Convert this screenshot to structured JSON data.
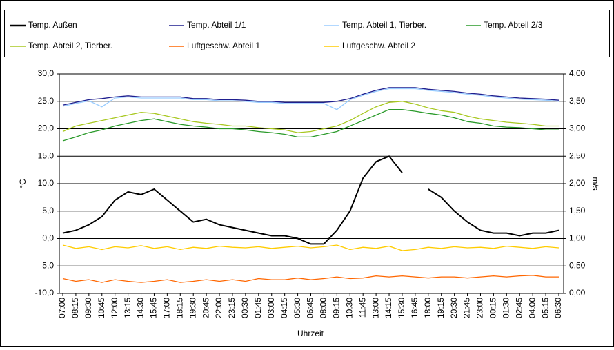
{
  "chart_data": {
    "type": "line",
    "x_label": "Uhrzeit",
    "y_label": "°C",
    "y2_label": "m/s",
    "categories": [
      "07:00",
      "08:15",
      "09:30",
      "10:45",
      "12:00",
      "13:15",
      "14:30",
      "15:45",
      "17:00",
      "18:15",
      "19:30",
      "20:45",
      "22:00",
      "23:15",
      "00:30",
      "01:45",
      "03:00",
      "04:15",
      "05:30",
      "06:45",
      "08:00",
      "09:15",
      "10:30",
      "11:45",
      "13:00",
      "14:15",
      "15:30",
      "16:45",
      "18:00",
      "19:15",
      "20:30",
      "21:45",
      "23:00",
      "00:15",
      "01:30",
      "02:45",
      "04:00",
      "05:15",
      "06:30"
    ],
    "series": [
      {
        "name": "Temp. Außen",
        "color": "#000000",
        "values": [
          1.0,
          1.5,
          2.5,
          4,
          7,
          8.5,
          8,
          9,
          7,
          5,
          3,
          3.5,
          2.5,
          2,
          1.5,
          1,
          0.5,
          0.5,
          0,
          -1,
          -1,
          1.5,
          5,
          11,
          14,
          15,
          12,
          null,
          9,
          7.5,
          5,
          3,
          1.5,
          1,
          1,
          0.5,
          1,
          1,
          1.5
        ]
      },
      {
        "name": "Temp. Abteil 1/1",
        "color": "#1f1f8f",
        "values": [
          24.3,
          24.8,
          25.3,
          25.5,
          25.8,
          26,
          25.8,
          25.8,
          25.8,
          25.8,
          25.5,
          25.5,
          25.3,
          25.3,
          25.2,
          25,
          25,
          24.8,
          24.8,
          24.8,
          24.8,
          25,
          25.5,
          26.3,
          27,
          27.5,
          27.5,
          27.5,
          27.2,
          27,
          26.8,
          26.5,
          26.3,
          26,
          25.8,
          25.6,
          25.5,
          25.4,
          25.2
        ]
      },
      {
        "name": "Temp. Abteil 1, Tierber.",
        "color": "#99ccff",
        "values": [
          24.1,
          24.6,
          25.1,
          24.0,
          25.6,
          25.8,
          25.6,
          25.6,
          25.6,
          25.6,
          25.3,
          25.3,
          25.1,
          25.1,
          25,
          24.8,
          24.8,
          24.6,
          24.6,
          24.6,
          24.6,
          23.5,
          25.3,
          26.1,
          26.8,
          27.3,
          27.3,
          27.3,
          27,
          26.8,
          26.6,
          26.3,
          26.1,
          25.8,
          25.6,
          25.4,
          25.3,
          25.2,
          25
        ]
      },
      {
        "name": "Temp. Abteil 2/3",
        "color": "#2a9a2a",
        "values": [
          17.8,
          18.5,
          19.3,
          19.8,
          20.5,
          21,
          21.5,
          21.8,
          21.3,
          20.8,
          20.5,
          20.3,
          20,
          20,
          19.8,
          19.5,
          19.3,
          19,
          18.5,
          18.5,
          19,
          19.5,
          20.5,
          21.5,
          22.5,
          23.5,
          23.5,
          23.2,
          22.8,
          22.5,
          22,
          21.3,
          21,
          20.5,
          20.3,
          20.2,
          20,
          19.8,
          19.8
        ]
      },
      {
        "name": "Temp. Abteil 2, Tierber.",
        "color": "#a8c820",
        "values": [
          19.5,
          20.5,
          21,
          21.5,
          22,
          22.5,
          23,
          22.8,
          22.3,
          21.8,
          21.3,
          21,
          20.8,
          20.5,
          20.5,
          20.2,
          20,
          19.8,
          19.3,
          19.5,
          20,
          20.5,
          21.5,
          22.8,
          24,
          24.8,
          25,
          24.5,
          23.8,
          23.3,
          23,
          22.3,
          21.8,
          21.5,
          21.2,
          21,
          20.8,
          20.5,
          20.5
        ]
      },
      {
        "name": "Luftgeschw. Abteil 1",
        "color": "#ff6600",
        "axis": "y2",
        "values": [
          0.27,
          0.22,
          0.25,
          0.2,
          0.25,
          0.22,
          0.2,
          0.22,
          0.25,
          0.2,
          0.22,
          0.25,
          0.22,
          0.25,
          0.22,
          0.27,
          0.25,
          0.25,
          0.28,
          0.25,
          0.27,
          0.3,
          0.27,
          0.28,
          0.32,
          0.3,
          0.32,
          0.3,
          0.28,
          0.3,
          0.3,
          0.28,
          0.3,
          0.32,
          0.3,
          0.32,
          0.33,
          0.3,
          0.3
        ]
      },
      {
        "name": "Luftgeschw. Abteil 2",
        "color": "#ffcc00",
        "axis": "y2",
        "values": [
          0.88,
          0.82,
          0.85,
          0.8,
          0.85,
          0.83,
          0.87,
          0.82,
          0.85,
          0.8,
          0.84,
          0.82,
          0.86,
          0.84,
          0.83,
          0.85,
          0.82,
          0.84,
          0.86,
          0.83,
          0.85,
          0.88,
          0.8,
          0.84,
          0.82,
          0.86,
          0.78,
          0.8,
          0.84,
          0.82,
          0.85,
          0.83,
          0.84,
          0.82,
          0.86,
          0.84,
          0.82,
          0.85,
          0.83
        ]
      }
    ],
    "ylim": [
      -10,
      30
    ],
    "yticks": [
      {
        "value": -10,
        "label": "-10,0"
      },
      {
        "value": -5,
        "label": "-5,0"
      },
      {
        "value": 0,
        "label": "0,0"
      },
      {
        "value": 5,
        "label": "5,0"
      },
      {
        "value": 10,
        "label": "10,0"
      },
      {
        "value": 15,
        "label": "15,0"
      },
      {
        "value": 20,
        "label": "20,0"
      },
      {
        "value": 25,
        "label": "25,0"
      },
      {
        "value": 30,
        "label": "30,0"
      }
    ],
    "y2lim": [
      0,
      4
    ],
    "y2ticks": [
      {
        "value": 0,
        "label": "0,00"
      },
      {
        "value": 0.5,
        "label": "0,50"
      },
      {
        "value": 1,
        "label": "1,00"
      },
      {
        "value": 1.5,
        "label": "1,50"
      },
      {
        "value": 2,
        "label": "2,00"
      },
      {
        "value": 2.5,
        "label": "2,50"
      },
      {
        "value": 3,
        "label": "3,00"
      },
      {
        "value": 3.5,
        "label": "3,50"
      },
      {
        "value": 4,
        "label": "4,00"
      }
    ],
    "grid": true
  }
}
